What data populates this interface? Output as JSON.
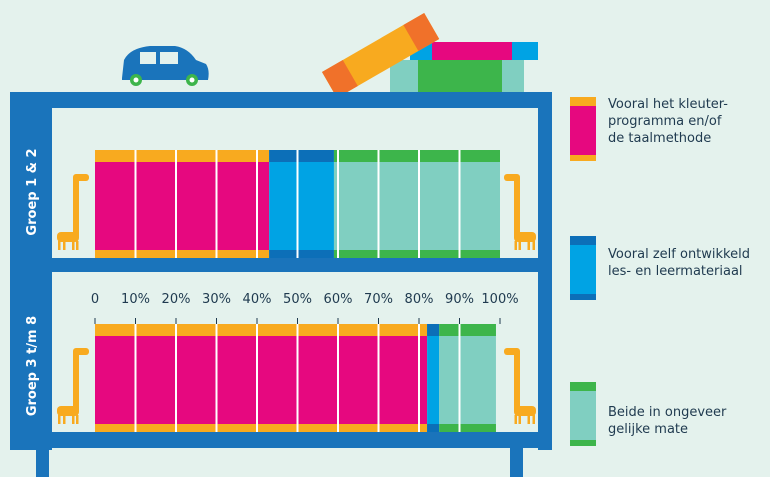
{
  "chart_data": {
    "type": "stacked-bar-horizontal",
    "categories": [
      "Groep 1 & 2",
      "Groep 3 t/m 8"
    ],
    "series": [
      {
        "name": "Vooral het kleuter-\nprogramma en/of\nde taalmethode",
        "color": "#e6087f",
        "accent_color": "#f8aa1f",
        "values": [
          43,
          82
        ]
      },
      {
        "name": "Vooral zelf ontwikkeld\nles- en leermateriaal",
        "color": "#00a3e4",
        "accent_color": "#0c6fb8",
        "values": [
          16,
          3
        ]
      },
      {
        "name": "Beide in ongeveer\ngelijke mate",
        "color": "#80cfc1",
        "accent_color": "#3db54b",
        "values": [
          41,
          14
        ]
      }
    ],
    "xlim": [
      0,
      100
    ],
    "xticks": [
      0,
      {
        "value": 10,
        "label": "10%"
      },
      {
        "value": 20,
        "label": "20%"
      },
      {
        "value": 30,
        "label": "30%"
      },
      {
        "value": 40,
        "label": "40%"
      },
      {
        "value": 50,
        "label": "50%"
      },
      {
        "value": 60,
        "label": "60%"
      },
      {
        "value": 70,
        "label": "70%"
      },
      {
        "value": 80,
        "label": "80%"
      },
      {
        "value": 90,
        "label": "90%"
      },
      {
        "value": 100,
        "label": "100%"
      }
    ]
  }
}
